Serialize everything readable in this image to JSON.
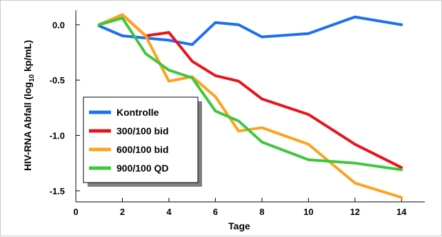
{
  "chart_data": {
    "type": "line",
    "xlabel": "Tage",
    "ylabel_parts": {
      "prefix": "HIV-RNA Abfall (log",
      "subscript": "10",
      "suffix": " kp/mL)"
    },
    "xlim": [
      0,
      15
    ],
    "ylim": [
      -1.6,
      0.13
    ],
    "x_ticks": [
      0,
      2,
      4,
      6,
      8,
      10,
      12,
      14
    ],
    "x_tick_labels": [
      "0",
      "2",
      "4",
      "6",
      "8",
      "10",
      "12",
      "14"
    ],
    "y_ticks": [
      0.0,
      -0.5,
      -1.0,
      -1.5
    ],
    "y_tick_labels": [
      "0.0",
      "-0.5",
      "-1.0",
      "-1.5"
    ],
    "legend_position": "bottom-left",
    "series": [
      {
        "name": "Kontrolle",
        "color": "#1e6ff0",
        "x": [
          1,
          2,
          4,
          5,
          6,
          7,
          8,
          10,
          12,
          14
        ],
        "y": [
          -0.01,
          -0.1,
          -0.14,
          -0.18,
          0.02,
          0.0,
          -0.11,
          -0.08,
          0.07,
          0.0
        ]
      },
      {
        "name": "300/100 bid",
        "color": "#e8141b",
        "x": [
          1,
          2,
          3,
          4,
          5,
          6,
          7,
          8,
          10,
          12,
          14
        ],
        "y": [
          0.0,
          0.09,
          -0.1,
          -0.07,
          -0.33,
          -0.46,
          -0.51,
          -0.67,
          -0.81,
          -1.08,
          -1.29
        ]
      },
      {
        "name": "600/100 bid",
        "color": "#ffa21a",
        "x": [
          1,
          2,
          3,
          4,
          5,
          6,
          7,
          8,
          10,
          12,
          14
        ],
        "y": [
          0.0,
          0.09,
          -0.1,
          -0.51,
          -0.47,
          -0.65,
          -0.96,
          -0.93,
          -1.08,
          -1.43,
          -1.56
        ]
      },
      {
        "name": "900/100 QD",
        "color": "#3cc83c",
        "x": [
          1,
          2,
          3,
          4,
          5,
          6,
          7,
          8,
          10,
          12,
          14
        ],
        "y": [
          0.0,
          0.06,
          -0.26,
          -0.41,
          -0.48,
          -0.78,
          -0.87,
          -1.06,
          -1.22,
          -1.25,
          -1.31
        ]
      }
    ]
  }
}
